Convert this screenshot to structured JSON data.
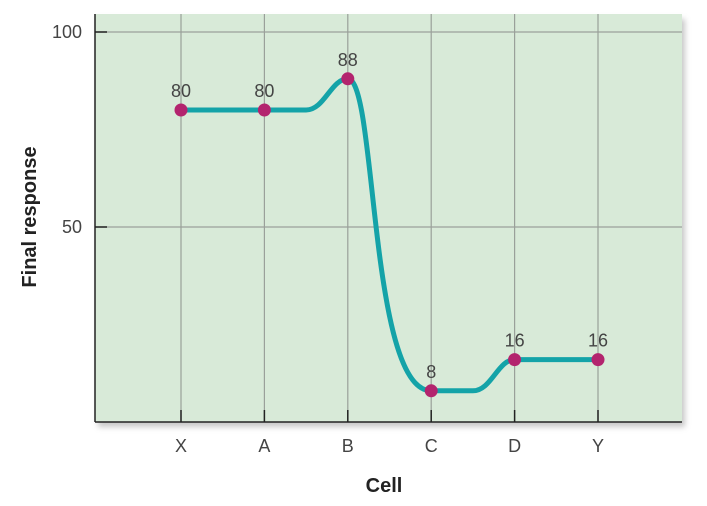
{
  "chart_data": {
    "type": "line",
    "categories": [
      "X",
      "A",
      "B",
      "C",
      "D",
      "Y"
    ],
    "series": [
      {
        "values": [
          80,
          80,
          88,
          8,
          16,
          16
        ]
      }
    ],
    "data_labels": [
      "80",
      "80",
      "88",
      "8",
      "16",
      "16"
    ],
    "xlabel": "Cell",
    "ylabel": "Final response",
    "yticks": [
      50,
      100
    ],
    "ytick_labels": [
      "50",
      "100"
    ],
    "ylim": [
      0,
      100
    ],
    "grid": true,
    "colors": {
      "plot_background": "#d8ead8",
      "line": "#14a3a8",
      "marker": "#b3246e",
      "grid": "#9aa09a",
      "axis": "#222222"
    }
  }
}
